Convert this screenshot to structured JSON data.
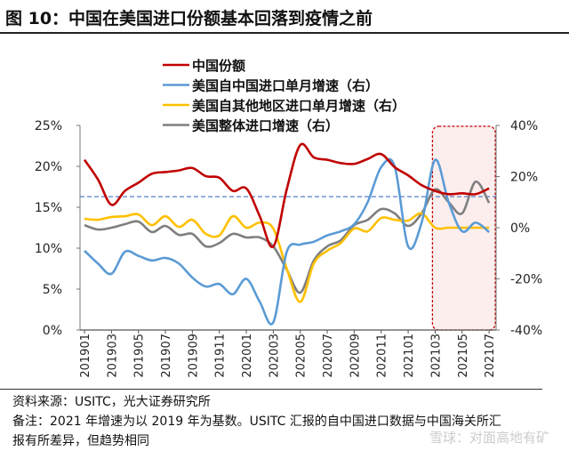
{
  "title": "图 10：中国在美国进口份额基本回落到疫情之前",
  "source": "资料来源：USITC，光大证券研究所",
  "note_line1": "备注：2021 年增速为以 2019 年为基数。USITC 汇报的自中国进口数据与中国海关所汇",
  "note_line2": "报有所差异，但趋势相同",
  "watermark": "雪球：对面高地有矿",
  "chart_data": {
    "type": "line",
    "x": [
      "201901",
      "201902",
      "201903",
      "201904",
      "201905",
      "201906",
      "201907",
      "201908",
      "201909",
      "201910",
      "201911",
      "201912",
      "202001",
      "202002",
      "202003",
      "202004",
      "202005",
      "202006",
      "202007",
      "202008",
      "202009",
      "202010",
      "202011",
      "202012",
      "202101",
      "202102",
      "202103",
      "202104",
      "202105",
      "202106",
      "202107"
    ],
    "x_tick_labels": [
      "201901",
      "201903",
      "201905",
      "201907",
      "201909",
      "201911",
      "202001",
      "202003",
      "202005",
      "202007",
      "202009",
      "202011",
      "202101",
      "202103",
      "202105",
      "202107"
    ],
    "left_axis": {
      "ylim": [
        0,
        25
      ],
      "ticks": [
        "0%",
        "5%",
        "10%",
        "15%",
        "20%",
        "25%"
      ]
    },
    "right_axis": {
      "ylim": [
        -40,
        40
      ],
      "ticks": [
        "-40%",
        "-20%",
        "0%",
        "20%",
        "40%"
      ]
    },
    "reference_line": {
      "axis": "left",
      "value": 16.3,
      "color": "#4472c4",
      "style": "dashed"
    },
    "highlight": {
      "from": "202103",
      "to": "202107",
      "color": "#c00000"
    },
    "legend_position": "top",
    "series": [
      {
        "name": "中国份额",
        "axis": "left",
        "color": "#c00000",
        "values": [
          20.8,
          18.4,
          15.3,
          17.0,
          18.0,
          19.1,
          19.3,
          19.5,
          19.8,
          18.8,
          18.6,
          17.0,
          17.3,
          13.9,
          10.2,
          17.2,
          22.6,
          21.1,
          20.8,
          20.4,
          20.3,
          20.9,
          21.5,
          19.9,
          18.9,
          17.7,
          17.0,
          16.6,
          16.7,
          16.6,
          17.3
        ]
      },
      {
        "name": "美国自中国进口单月增速（右）",
        "axis": "right",
        "color": "#5b9bd5",
        "values": [
          -9,
          -14,
          -18,
          -9.4,
          -11,
          -12.8,
          -11.8,
          -14,
          -19.5,
          -23,
          -22,
          -26,
          -20,
          -29,
          -37,
          -9.4,
          -6.6,
          -5.5,
          -3,
          -1.4,
          1.4,
          10,
          23.7,
          24,
          -7.3,
          2,
          26.5,
          10,
          -1.4,
          2,
          -1.7
        ]
      },
      {
        "name": "美国自其他地区进口单月增速（右）",
        "axis": "right",
        "color": "#ffc000",
        "values": [
          3.5,
          3.1,
          4.2,
          4.5,
          5.2,
          1,
          4.5,
          0.3,
          3.1,
          -2.4,
          -3,
          4.5,
          0,
          2,
          -0.3,
          -16,
          -29,
          -14,
          -9,
          -6,
          -0.3,
          -1.4,
          3.8,
          3.1,
          2.8,
          5.6,
          0,
          0,
          0,
          0,
          0
        ]
      },
      {
        "name": "美国整体进口增速（右）",
        "axis": "right",
        "color": "#7f7f7f",
        "values": [
          1,
          -0.7,
          0,
          1.4,
          2.4,
          -1.7,
          0.7,
          -2.8,
          -2.4,
          -7.3,
          -6,
          -2.4,
          -3.8,
          -3.8,
          -7.3,
          -16.4,
          -25.4,
          -12.9,
          -7.3,
          -4.9,
          1,
          3.1,
          7.3,
          5.6,
          0.7,
          5.6,
          15,
          10,
          5.6,
          18,
          9.7
        ]
      }
    ]
  }
}
